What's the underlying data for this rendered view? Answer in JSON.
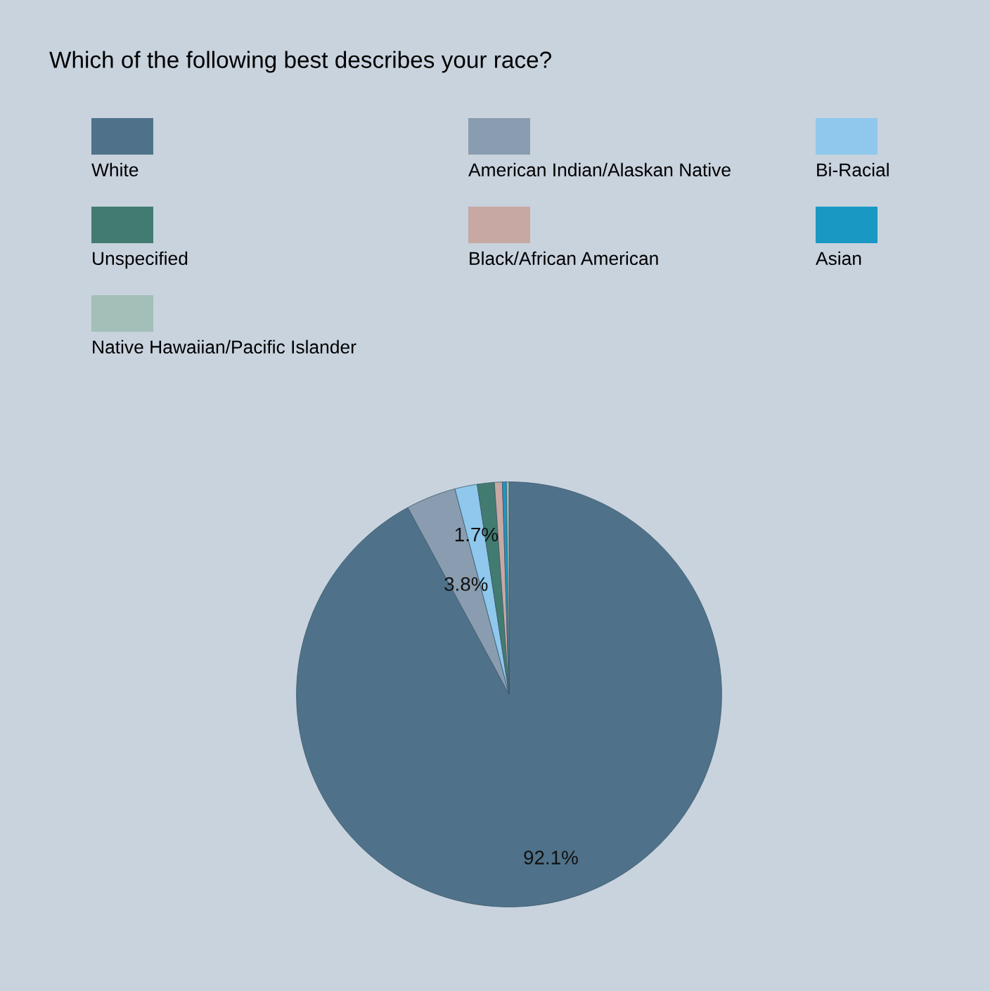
{
  "chart_data": {
    "type": "pie",
    "title": "Which of the following best describes your race?",
    "categories": [
      "White",
      "American Indian/Alaskan Native",
      "Bi-Racial",
      "Unspecified",
      "Black/African American",
      "Asian",
      "Native Hawaiian/Pacific Islander"
    ],
    "values": [
      92.1,
      3.8,
      1.7,
      1.3,
      0.6,
      0.3,
      0.2
    ],
    "colors": [
      "#4f728a",
      "#8a9db0",
      "#8fc8ec",
      "#427c70",
      "#c8a8a2",
      "#1a98c4",
      "#a2bfb8"
    ],
    "value_labels": [
      "92.1%",
      "3.8%",
      "1.7%",
      null,
      null,
      null,
      null
    ],
    "legend": "top"
  }
}
